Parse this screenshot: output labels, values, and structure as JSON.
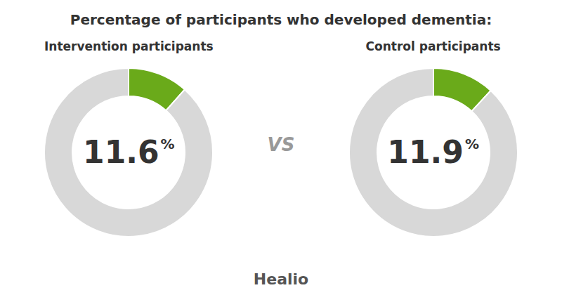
{
  "title": "Percentage of participants who developed dementia:",
  "annotations": [
    "VS",
    "Healio"
  ],
  "chart_data": [
    {
      "type": "pie",
      "title": "Intervention participants",
      "values": [
        11.6,
        88.4
      ],
      "colors": [
        "#6aaa1a",
        "#d8d8d8"
      ],
      "annotations": [
        "11.6",
        "%"
      ]
    },
    {
      "type": "pie",
      "title": "Control participants",
      "values": [
        11.9,
        88.1
      ],
      "colors": [
        "#6aaa1a",
        "#d8d8d8"
      ],
      "annotations": [
        "11.9",
        "%"
      ]
    }
  ]
}
